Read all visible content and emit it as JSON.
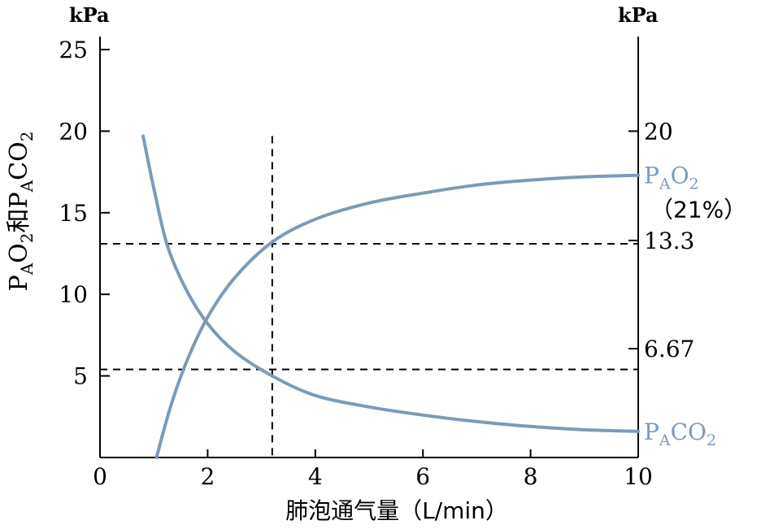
{
  "chart_data": {
    "type": "line",
    "xlabel": "肺泡通气量（L/min）",
    "ylabel": {
      "p1": "P",
      "s1": "A",
      "p2": "O",
      "s2": "2",
      "p3": "和P",
      "s3": "A",
      "p4": "CO",
      "s4": "2"
    },
    "left_unit": "kPa",
    "right_unit": "kPa",
    "xlim": [
      0,
      10
    ],
    "ylim": [
      0,
      25
    ],
    "x_ticks": [
      {
        "value": 0,
        "label": "0"
      },
      {
        "value": 2,
        "label": "2"
      },
      {
        "value": 4,
        "label": "4"
      },
      {
        "value": 6,
        "label": "6"
      },
      {
        "value": 8,
        "label": "8"
      },
      {
        "value": 10,
        "label": "10"
      }
    ],
    "y_ticks_left": [
      {
        "value": 5,
        "label": "5"
      },
      {
        "value": 10,
        "label": "10"
      },
      {
        "value": 15,
        "label": "15"
      },
      {
        "value": 20,
        "label": "20"
      },
      {
        "value": 25,
        "label": "25"
      }
    ],
    "y_ticks_right": [
      {
        "value": 20,
        "label": "20"
      },
      {
        "value": 13.3,
        "label": "13.3"
      },
      {
        "value": 6.67,
        "label": "6.67"
      }
    ],
    "reference_lines": [
      {
        "orientation": "vertical",
        "x": 3.2,
        "y_top": 19.7
      },
      {
        "orientation": "horizontal",
        "y": 13.1
      },
      {
        "orientation": "horizontal",
        "y": 5.4
      }
    ],
    "series": [
      {
        "label": {
          "main": "P",
          "sub1": "A",
          "main2": "O",
          "sub2": "2"
        },
        "note": "（21%）",
        "color": "#7b9bb8",
        "x": [
          1.05,
          1.3,
          1.6,
          2.0,
          2.5,
          3.2,
          4.0,
          5.0,
          6.0,
          7.0,
          8.0,
          9.0,
          10.0
        ],
        "y": [
          0.0,
          3.0,
          5.8,
          8.6,
          11.0,
          13.2,
          14.6,
          15.6,
          16.2,
          16.7,
          17.0,
          17.2,
          17.3
        ]
      },
      {
        "label": {
          "main": "P",
          "sub1": "A",
          "main2": "CO",
          "sub2": "2"
        },
        "color": "#7b9bb8",
        "x": [
          0.8,
          1.0,
          1.25,
          1.6,
          2.0,
          2.5,
          3.2,
          4.0,
          5.0,
          6.0,
          7.0,
          8.0,
          9.0,
          10.0
        ],
        "y": [
          19.7,
          16.5,
          13.0,
          10.3,
          8.2,
          6.5,
          5.0,
          3.8,
          3.1,
          2.6,
          2.2,
          1.9,
          1.7,
          1.6
        ]
      }
    ]
  }
}
